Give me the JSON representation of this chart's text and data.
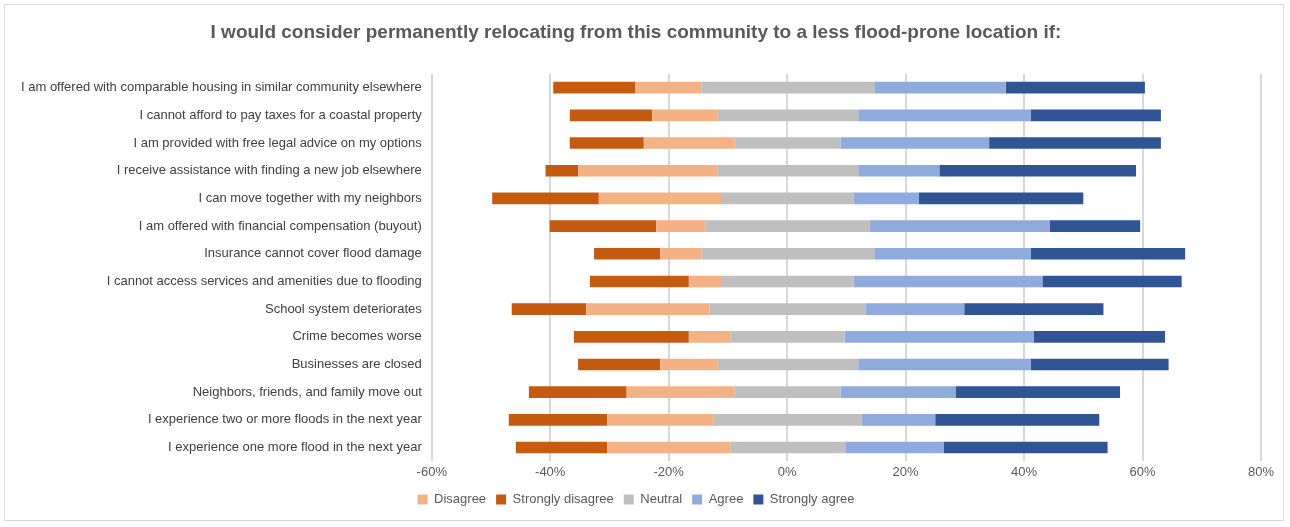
{
  "chart_data": {
    "type": "bar",
    "orientation": "horizontal",
    "title": "I would consider permanently relocating from this community to a less flood-prone location if:",
    "categories": [
      "I am offered with comparable housing in similar community elsewhere",
      "I cannot afford to pay taxes for a coastal property",
      "I am provided with free legal advice on my options",
      "I receive assistance with finding a new job elsewhere",
      "I can move together with my neighbors",
      "I am offered with financial compensation (buyout)",
      "Insurance cannot cover flood damage",
      "I cannot access services and amenities due to flooding",
      "School system deteriorates",
      "Crime becomes worse",
      "Businesses are closed",
      "Neighbors, friends, and family move out",
      "I experience two or more floods in the next year",
      "I experience one more flood in the next year"
    ],
    "series": [
      {
        "name": "Disagree",
        "color": "#f4b183",
        "base": [
          -25.6,
          -22.8,
          -24.2,
          -35.3,
          -31.8,
          -22.1,
          -21.4,
          -16.6,
          -33.9,
          -16.6,
          -21.4,
          -27.1,
          -30.4,
          -30.4
        ],
        "values": [
          11.1,
          11.1,
          15.3,
          23.6,
          20.8,
          8.3,
          6.9,
          5.6,
          20.8,
          7.0,
          9.7,
          18.2,
          18.0,
          20.8
        ]
      },
      {
        "name": "Strongly disagree",
        "color": "#c55a11",
        "base": [
          -39.5,
          -36.7,
          -36.7,
          -40.8,
          -49.8,
          -40.1,
          -32.6,
          -33.3,
          -46.5,
          -36.0,
          -35.3,
          -43.6,
          -47.0,
          -45.8
        ],
        "values": [
          13.9,
          13.9,
          12.5,
          5.5,
          18.0,
          18.0,
          11.2,
          16.7,
          12.6,
          19.4,
          13.9,
          16.5,
          16.6,
          15.4
        ]
      },
      {
        "name": "Neutral",
        "color": "#bfbfbf",
        "base": [
          -14.5,
          -11.7,
          -8.9,
          -11.7,
          -11.0,
          -13.8,
          -14.5,
          -11.0,
          -13.1,
          -9.6,
          -11.7,
          -8.9,
          -12.4,
          -9.6
        ],
        "values": [
          29.2,
          23.7,
          17.9,
          23.7,
          22.2,
          27.8,
          29.2,
          22.2,
          26.4,
          19.3,
          23.7,
          17.9,
          25.0,
          19.4
        ]
      },
      {
        "name": "Agree",
        "color": "#8faadc",
        "base": [
          14.7,
          12.0,
          9.0,
          12.0,
          11.2,
          14.0,
          14.7,
          11.2,
          13.3,
          9.7,
          12.0,
          9.0,
          12.6,
          9.8
        ],
        "values": [
          22.2,
          29.1,
          25.1,
          13.7,
          11.0,
          30.3,
          26.4,
          31.9,
          16.6,
          31.9,
          29.1,
          19.5,
          12.4,
          16.6
        ]
      },
      {
        "name": "Strongly agree",
        "color": "#2f5597",
        "base": [
          36.9,
          41.1,
          34.1,
          25.7,
          22.2,
          44.3,
          41.1,
          43.1,
          29.9,
          41.6,
          41.1,
          28.5,
          25.0,
          26.4
        ],
        "values": [
          23.5,
          22.0,
          29.0,
          33.2,
          27.8,
          15.3,
          26.1,
          23.5,
          23.5,
          22.2,
          23.3,
          27.7,
          27.7,
          27.7
        ]
      }
    ],
    "xlim": [
      -60,
      80
    ],
    "xticks": [
      {
        "value": -60,
        "label": "-60%"
      },
      {
        "value": -40,
        "label": "-40%"
      },
      {
        "value": -20,
        "label": "-20%"
      },
      {
        "value": 0,
        "label": "0%"
      },
      {
        "value": 20,
        "label": "20%"
      },
      {
        "value": 40,
        "label": "40%"
      },
      {
        "value": 60,
        "label": "60%"
      },
      {
        "value": 80,
        "label": "80%"
      }
    ],
    "grid": "x",
    "legend": "bottom"
  }
}
